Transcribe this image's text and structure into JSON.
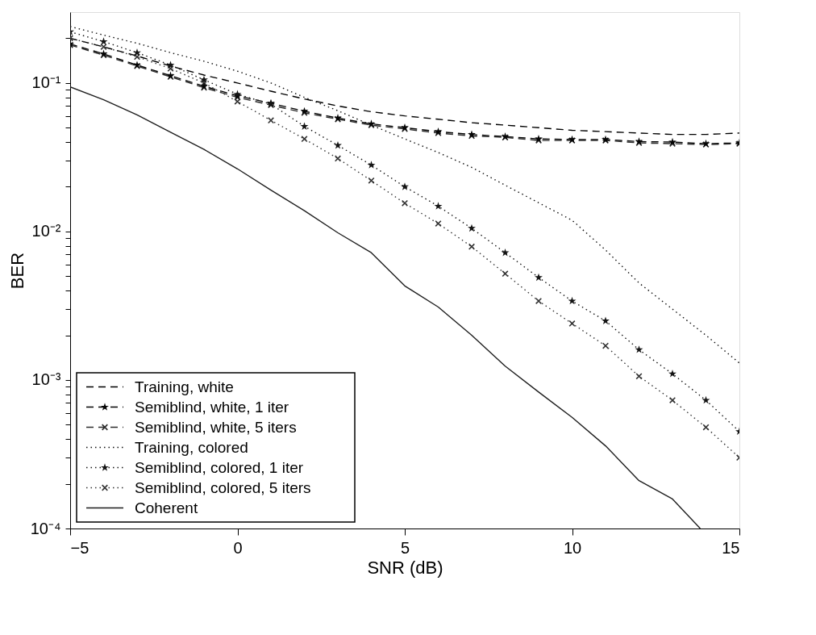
{
  "chart_data": {
    "type": "line",
    "xlabel": "SNR (dB)",
    "ylabel": "BER",
    "log": "y",
    "grid": false,
    "legend": "bottom left",
    "x": [
      -5,
      -4,
      -3,
      -2,
      -1,
      0,
      1,
      2,
      3,
      4,
      5,
      6,
      7,
      8,
      9,
      10,
      11,
      12,
      13,
      14,
      15
    ],
    "xlim": [
      -5,
      15
    ],
    "xticks": [
      {
        "value": -5,
        "label": "−5"
      },
      0,
      5,
      10,
      15
    ],
    "ylim": [
      0.0001,
      0.3
    ],
    "yticks": [
      {
        "value": 0.0001,
        "label": "10⁻⁴"
      },
      {
        "value": 0.0002,
        "label": null
      },
      {
        "value": 0.0003,
        "label": null
      },
      {
        "value": 0.0004,
        "label": null
      },
      {
        "value": 0.0005,
        "label": null
      },
      {
        "value": 0.0006,
        "label": null
      },
      {
        "value": 0.0007,
        "label": null
      },
      {
        "value": 0.0008,
        "label": null
      },
      {
        "value": 0.0009,
        "label": null
      },
      {
        "value": 0.001,
        "label": "10⁻³"
      },
      {
        "value": 0.002,
        "label": null
      },
      {
        "value": 0.003,
        "label": null
      },
      {
        "value": 0.004,
        "label": null
      },
      {
        "value": 0.005,
        "label": null
      },
      {
        "value": 0.006,
        "label": null
      },
      {
        "value": 0.007,
        "label": null
      },
      {
        "value": 0.008,
        "label": null
      },
      {
        "value": 0.009,
        "label": null
      },
      {
        "value": 0.01,
        "label": "10⁻²"
      },
      {
        "value": 0.02,
        "label": null
      },
      {
        "value": 0.03,
        "label": null
      },
      {
        "value": 0.04,
        "label": null
      },
      {
        "value": 0.05,
        "label": null
      },
      {
        "value": 0.06,
        "label": null
      },
      {
        "value": 0.07,
        "label": null
      },
      {
        "value": 0.08,
        "label": null
      },
      {
        "value": 0.09,
        "label": null
      },
      {
        "value": 0.1,
        "label": "10⁻¹"
      },
      {
        "value": 0.2,
        "label": null
      }
    ],
    "series": [
      {
        "name": "Training, white",
        "color": "#000000",
        "line_style": "dashed",
        "marker": "none",
        "values": [
          0.2,
          0.175,
          0.152,
          0.13,
          0.113,
          0.1,
          0.088,
          0.078,
          0.07,
          0.064,
          0.06,
          0.057,
          0.054,
          0.052,
          0.05,
          0.048,
          0.047,
          0.046,
          0.045,
          0.045,
          0.046
        ]
      },
      {
        "name": "Semiblind, white, 1 iter",
        "color": "#050505",
        "line_style": "dashed",
        "marker": "star",
        "values": [
          0.183,
          0.157,
          0.132,
          0.112,
          0.095,
          0.082,
          0.073,
          0.0645,
          0.058,
          0.053,
          0.05,
          0.047,
          0.045,
          0.0435,
          0.042,
          0.0416,
          0.0416,
          0.0403,
          0.04,
          0.039,
          0.0395
        ]
      },
      {
        "name": "Semiblind, white, 5 iters",
        "color": "#2b2b2b",
        "line_style": "dashed",
        "marker": "cross",
        "values": [
          0.18,
          0.154,
          0.13,
          0.11,
          0.093,
          0.08,
          0.071,
          0.063,
          0.057,
          0.052,
          0.049,
          0.046,
          0.044,
          0.043,
          0.041,
          0.041,
          0.041,
          0.0395,
          0.039,
          0.0385,
          0.039
        ]
      },
      {
        "name": "Training, colored",
        "color": "#0f0f0f",
        "line_style": "dotted",
        "marker": "none",
        "values": [
          0.24,
          0.21,
          0.185,
          0.16,
          0.14,
          0.12,
          0.1,
          0.08,
          0.065,
          0.052,
          0.042,
          0.034,
          0.027,
          0.0205,
          0.0156,
          0.0119,
          0.0075,
          0.0045,
          0.003,
          0.002,
          0.0013
        ]
      },
      {
        "name": "Semiblind, colored, 1 iter",
        "color": "#141414",
        "line_style": "dotted",
        "marker": "star",
        "values": [
          0.221,
          0.19,
          0.16,
          0.132,
          0.105,
          0.084,
          0.072,
          0.051,
          0.038,
          0.028,
          0.02,
          0.0148,
          0.0105,
          0.0072,
          0.0049,
          0.0034,
          0.0025,
          0.0016,
          0.0011,
          0.00073,
          0.00045
        ]
      },
      {
        "name": "Semiblind, colored, 5 iters",
        "color": "#333333",
        "line_style": "dotted",
        "marker": "cross",
        "values": [
          0.2,
          0.175,
          0.15,
          0.125,
          0.1,
          0.075,
          0.056,
          0.042,
          0.031,
          0.022,
          0.0155,
          0.0113,
          0.0079,
          0.0052,
          0.0034,
          0.0024,
          0.0017,
          0.00106,
          0.00073,
          0.00048,
          0.0003
        ]
      },
      {
        "name": "Coherent",
        "color": "#1e1e1e",
        "line_style": "solid",
        "marker": "none",
        "x": [
          -5,
          -4,
          -3,
          -2,
          -1,
          0,
          1,
          2,
          3,
          4,
          5,
          6,
          7,
          8,
          9,
          10,
          11,
          12,
          13,
          13.83
        ],
        "values": [
          0.094,
          0.077,
          0.061,
          0.0466,
          0.0357,
          0.0264,
          0.019,
          0.0138,
          0.0098,
          0.0072,
          0.0043,
          0.0031,
          0.002,
          0.00124,
          0.00083,
          0.00056,
          0.00036,
          0.00021,
          0.000158,
          0.0001
        ]
      }
    ]
  }
}
